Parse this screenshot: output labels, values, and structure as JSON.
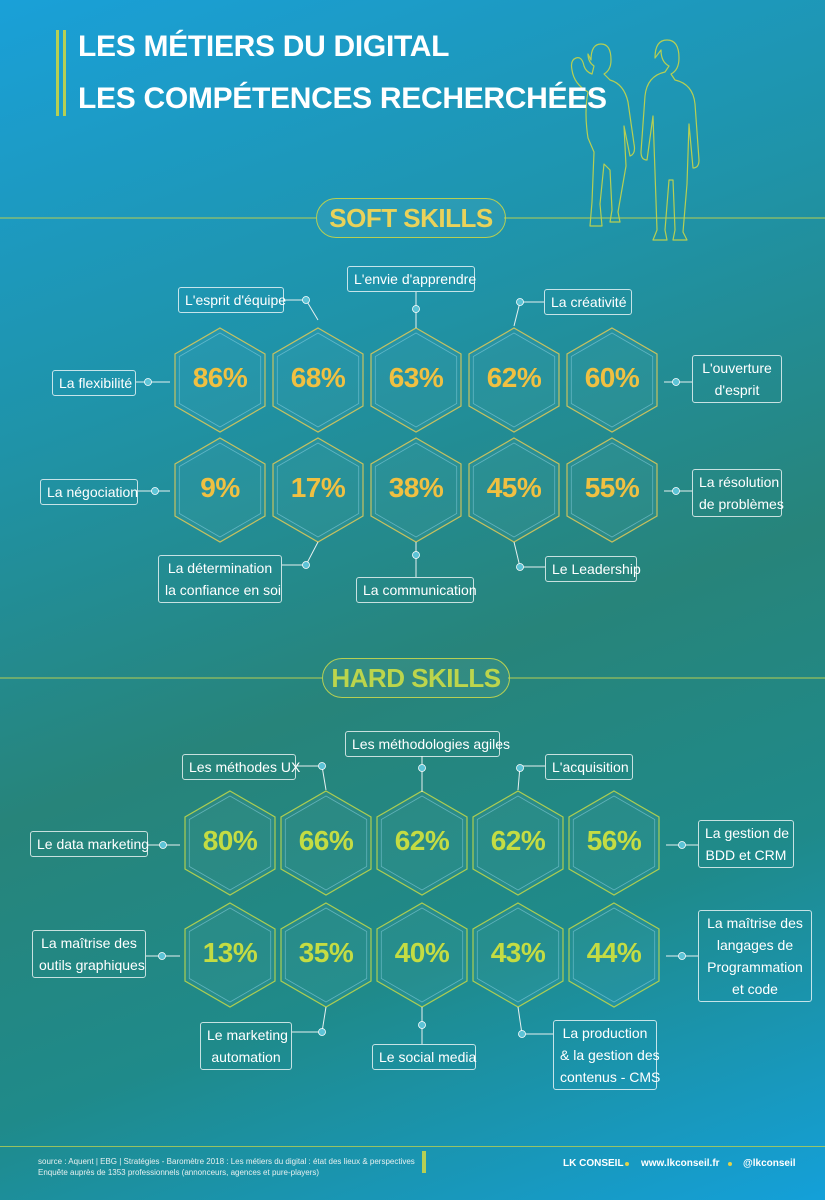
{
  "header": {
    "title_line1": "LES MÉTIERS DU DIGITAL",
    "title_line2": "LES COMPÉTENCES RECHERCHÉES"
  },
  "colors": {
    "soft_value": "#f0c041",
    "hard_value": "#c4dc43",
    "accent_line": "#b6cf53"
  },
  "soft": {
    "heading": "SOFT SKILLS",
    "row1": [
      {
        "value": "86%",
        "label": [
          "La flexibilité"
        ]
      },
      {
        "value": "68%",
        "label": [
          "L'esprit d'équipe"
        ]
      },
      {
        "value": "63%",
        "label": [
          "L'envie d'apprendre"
        ]
      },
      {
        "value": "62%",
        "label": [
          "La créativité"
        ]
      },
      {
        "value": "60%",
        "label": [
          "L'ouverture",
          "d'esprit"
        ]
      }
    ],
    "row2": [
      {
        "value": "9%",
        "label": [
          "La négociation"
        ]
      },
      {
        "value": "17%",
        "label": [
          "La détermination",
          "la confiance en soi"
        ]
      },
      {
        "value": "38%",
        "label": [
          "La communication"
        ]
      },
      {
        "value": "45%",
        "label": [
          "Le Leadership"
        ]
      },
      {
        "value": "55%",
        "label": [
          "La résolution",
          "de problèmes"
        ]
      }
    ]
  },
  "hard": {
    "heading": "HARD SKILLS",
    "row1": [
      {
        "value": "80%",
        "label": [
          "Le data marketing"
        ]
      },
      {
        "value": "66%",
        "label": [
          "Les méthodes UX"
        ]
      },
      {
        "value": "62%",
        "label": [
          "Les méthodologies agiles"
        ]
      },
      {
        "value": "62%",
        "label": [
          "L'acquisition"
        ]
      },
      {
        "value": "56%",
        "label": [
          "La gestion de",
          "BDD et CRM"
        ]
      }
    ],
    "row2": [
      {
        "value": "13%",
        "label": [
          "La maîtrise des",
          "outils graphiques"
        ]
      },
      {
        "value": "35%",
        "label": [
          "Le marketing",
          "automation"
        ]
      },
      {
        "value": "40%",
        "label": [
          "Le social media"
        ]
      },
      {
        "value": "43%",
        "label": [
          "La production",
          "& la gestion des",
          "contenus - CMS"
        ]
      },
      {
        "value": "44%",
        "label": [
          "La maîtrise des",
          "langages  de",
          "Programmation",
          "et code"
        ]
      }
    ]
  },
  "footer": {
    "source_line1": "source : Aquent | EBG | Stratégies - Baromètre 2018 : Les métiers du digital : état des lieux & perspectives",
    "source_line2": "Enquête auprès de 1353 professionnels (annonceurs, agences et pure-players)",
    "brand": "LK CONSEIL",
    "website": "www.lkconseil.fr",
    "handle": "@lkconseil"
  }
}
